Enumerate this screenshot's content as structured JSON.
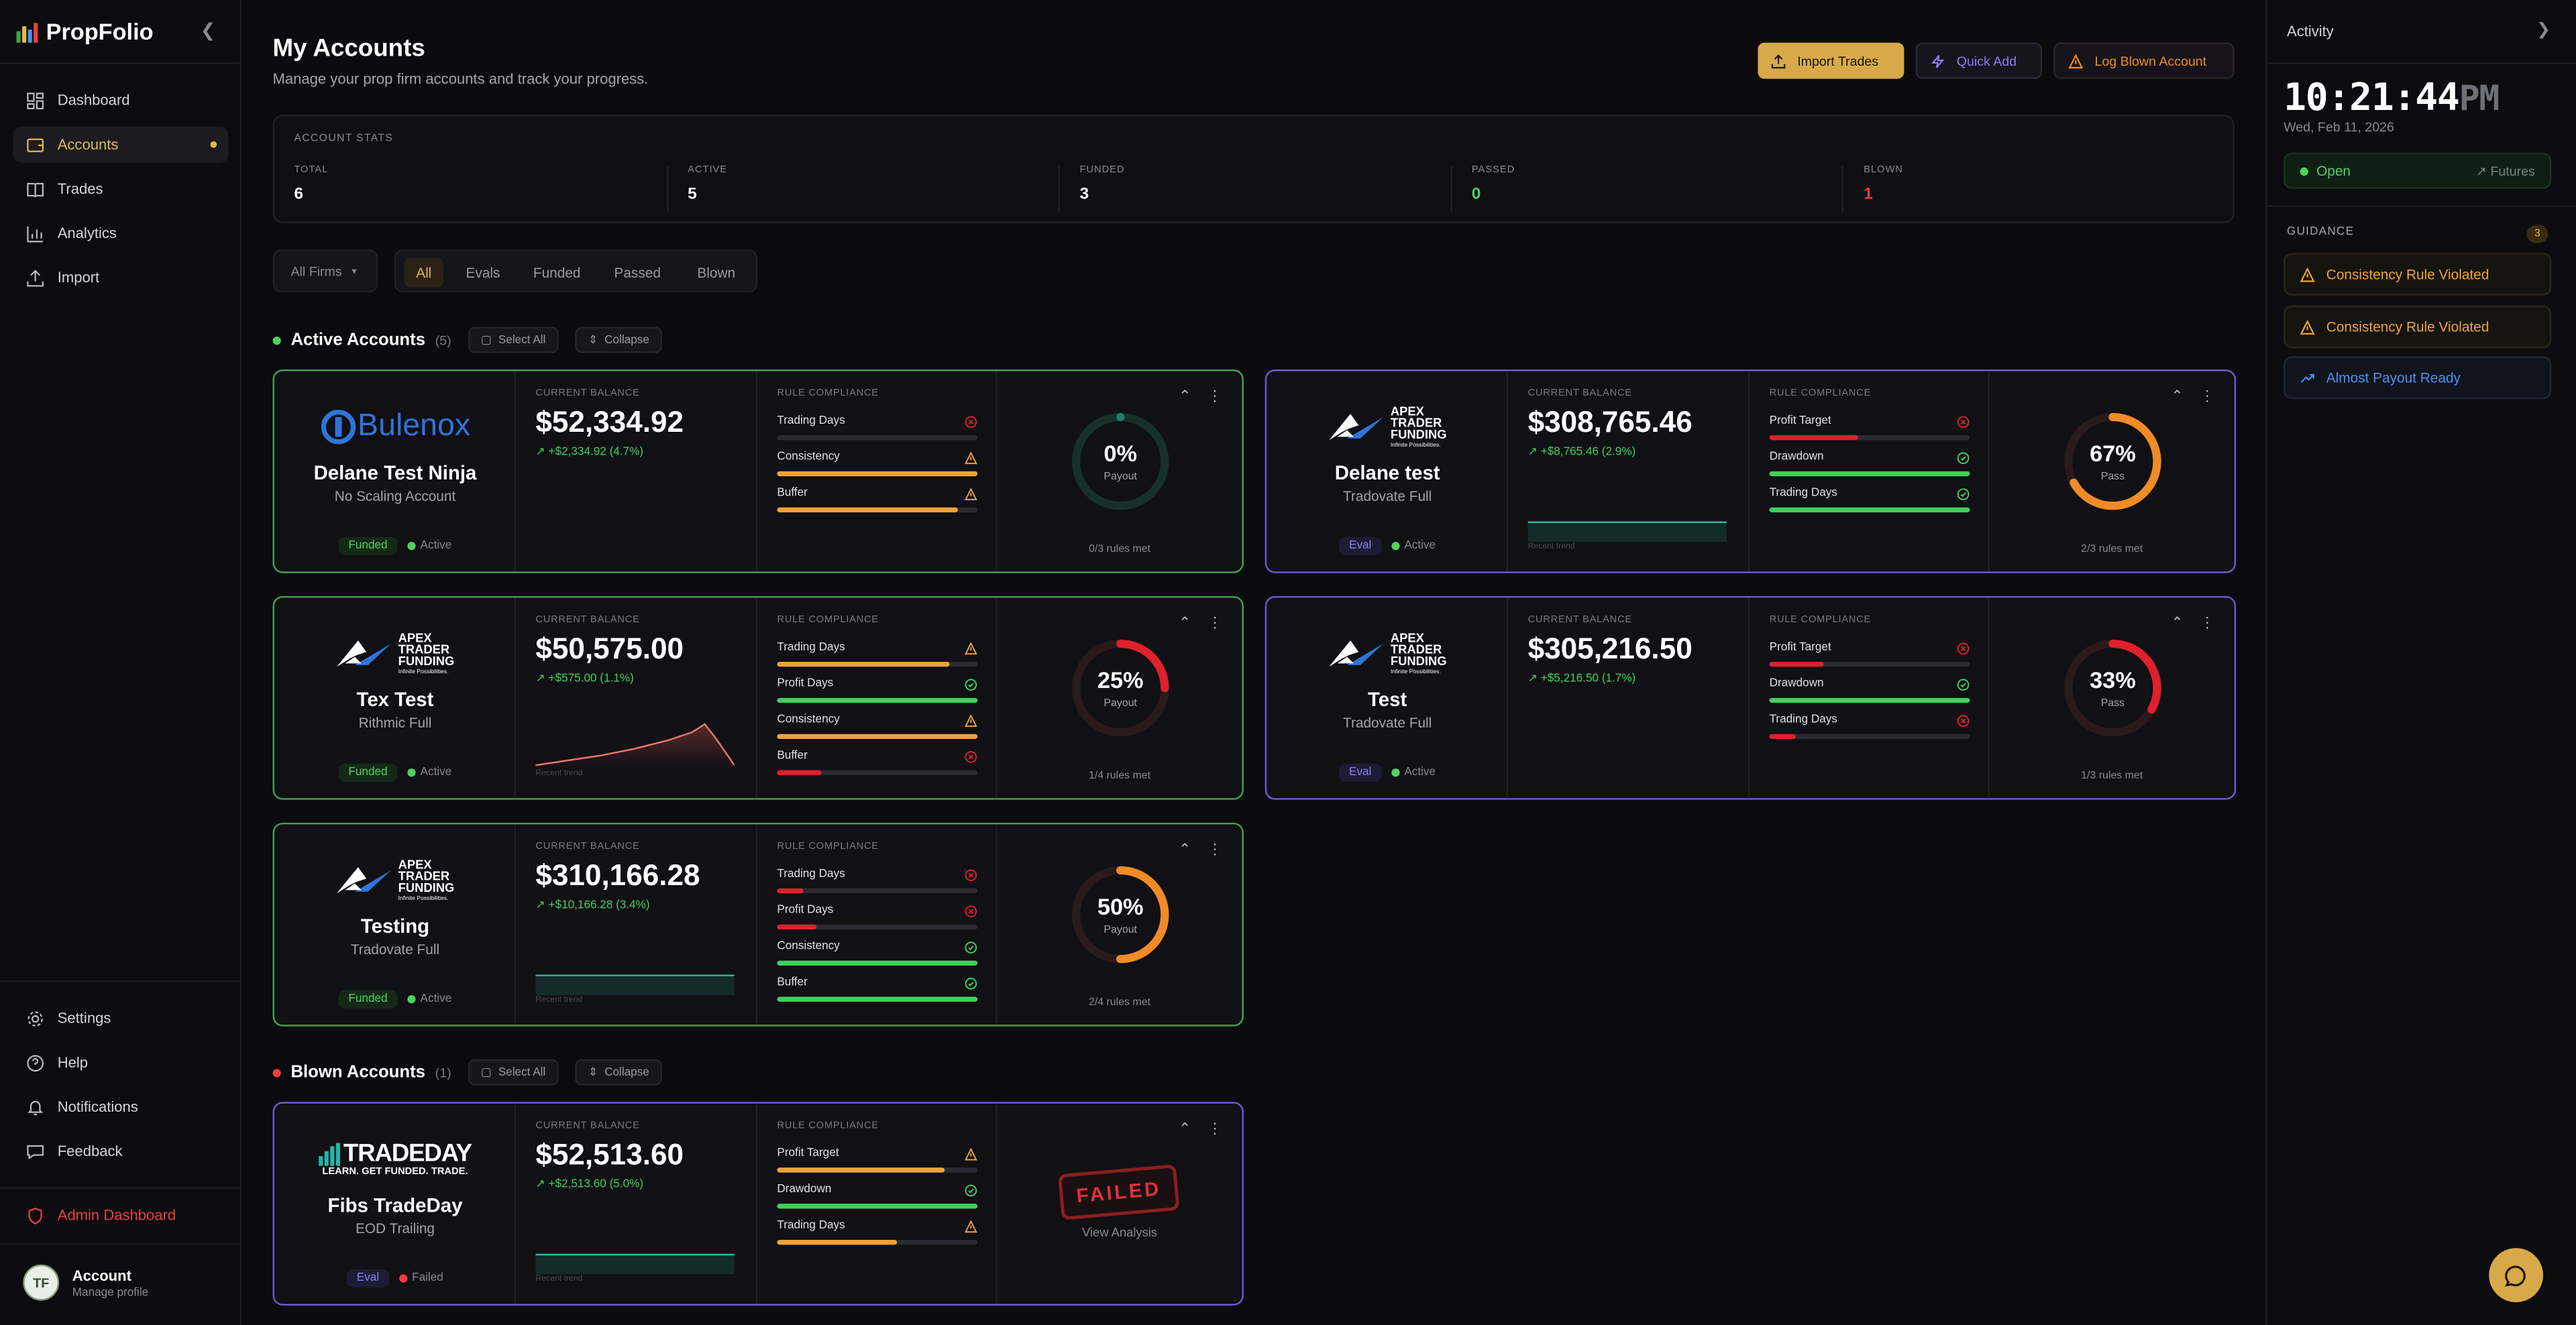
{
  "brand": {
    "name": "PropFolio"
  },
  "sidebar": {
    "items": [
      {
        "label": "Dashboard",
        "icon": "dashboard-icon"
      },
      {
        "label": "Accounts",
        "icon": "wallet-icon"
      },
      {
        "label": "Trades",
        "icon": "book-icon"
      },
      {
        "label": "Analytics",
        "icon": "bar-chart-icon"
      },
      {
        "label": "Import",
        "icon": "upload-icon"
      }
    ],
    "bottom_items": [
      {
        "label": "Settings",
        "icon": "gear-icon"
      },
      {
        "label": "Help",
        "icon": "help-icon"
      },
      {
        "label": "Notifications",
        "icon": "bell-icon"
      },
      {
        "label": "Feedback",
        "icon": "feedback-icon"
      }
    ],
    "admin_label": "Admin Dashboard",
    "account_name": "Account",
    "account_sub": "Manage profile",
    "avatar_letter": "TF"
  },
  "header": {
    "title": "My Accounts",
    "subtitle": "Manage your prop firm accounts and track your progress.",
    "import_label": "Import Trades",
    "quick_label": "Quick Add",
    "blown_label": "Log Blown Account"
  },
  "stats": {
    "title": "ACCOUNT STATS",
    "items": [
      {
        "label": "TOTAL",
        "value": "6",
        "color": "#ffffff"
      },
      {
        "label": "ACTIVE",
        "value": "5",
        "color": "#ffffff"
      },
      {
        "label": "FUNDED",
        "value": "3",
        "color": "#ffffff"
      },
      {
        "label": "PASSED",
        "value": "0",
        "color": "#4fd15e"
      },
      {
        "label": "BLOWN",
        "value": "1",
        "color": "#f03e3e"
      }
    ]
  },
  "filters": {
    "firms_label": "All Firms",
    "tabs": [
      "All",
      "Evals",
      "Funded",
      "Passed",
      "Blown"
    ]
  },
  "sections": {
    "active": {
      "title": "Active Accounts",
      "count": "(5)",
      "select_all": "Select All",
      "collapse": "Collapse"
    },
    "blown": {
      "title": "Blown Accounts",
      "count": "(1)",
      "select_all": "Select All",
      "collapse": "Collapse"
    }
  },
  "labels": {
    "current_balance": "CURRENT BALANCE",
    "rule_compliance": "RULE COMPLIANCE",
    "recent_trend": "Recent trend",
    "view_analysis": "View Analysis",
    "failed_stamp": "FAILED"
  },
  "accounts": [
    {
      "name": "Delane Test Ninja",
      "sub": "No Scaling Account",
      "firm_logo": "Bulenox",
      "type": "Funded",
      "status": "Active",
      "balance": "$52,334.92",
      "change": "+$2,334.92 (4.7%)",
      "trend": false,
      "rules": [
        {
          "name": "Trading Days",
          "fill": 0,
          "state": "fail"
        },
        {
          "name": "Consistency",
          "fill": 1.0,
          "state": "warn"
        },
        {
          "name": "Buffer",
          "fill": 0.9,
          "state": "warn"
        }
      ],
      "ring_pct": "0%",
      "ring_label": "Payout",
      "ring_value": 0,
      "rules_met": "0/3 rules met",
      "ring_color": "#1b7f6f"
    },
    {
      "name": "Delane test",
      "sub": "Tradovate Full",
      "firm_logo": "apex",
      "type": "Eval",
      "status": "Active",
      "balance": "$308,765.46",
      "change": "+$8,765.46 (2.9%)",
      "trend": "flat",
      "rules": [
        {
          "name": "Profit Target",
          "fill": 0.44,
          "state": "fail"
        },
        {
          "name": "Drawdown",
          "fill": 1.0,
          "state": "ok"
        },
        {
          "name": "Trading Days",
          "fill": 1.0,
          "state": "ok"
        }
      ],
      "ring_pct": "67%",
      "ring_label": "Pass",
      "ring_value": 0.67,
      "rules_met": "2/3 rules met",
      "ring_color": "#f08b26"
    },
    {
      "name": "Tex Test",
      "sub": "Rithmic Full",
      "firm_logo": "apex",
      "type": "Funded",
      "status": "Active",
      "balance": "$50,575.00",
      "change": "+$575.00 (1.1%)",
      "trend": "up",
      "rules": [
        {
          "name": "Trading Days",
          "fill": 0.86,
          "state": "warn"
        },
        {
          "name": "Profit Days",
          "fill": 1.0,
          "state": "ok"
        },
        {
          "name": "Consistency",
          "fill": 1.0,
          "state": "warn"
        },
        {
          "name": "Buffer",
          "fill": 0.22,
          "state": "fail"
        }
      ],
      "ring_pct": "25%",
      "ring_label": "Payout",
      "ring_value": 0.25,
      "rules_met": "1/4 rules met",
      "ring_color": "#e0202c"
    },
    {
      "name": "Test",
      "sub": "Tradovate Full",
      "firm_logo": "apex",
      "type": "Eval",
      "status": "Active",
      "balance": "$305,216.50",
      "change": "+$5,216.50 (1.7%)",
      "trend": false,
      "rules": [
        {
          "name": "Profit Target",
          "fill": 0.27,
          "state": "fail"
        },
        {
          "name": "Drawdown",
          "fill": 1.0,
          "state": "ok"
        },
        {
          "name": "Trading Days",
          "fill": 0.13,
          "state": "fail"
        }
      ],
      "ring_pct": "33%",
      "ring_label": "Pass",
      "ring_value": 0.33,
      "rules_met": "1/3 rules met",
      "ring_color": "#e0202c"
    },
    {
      "name": "Testing",
      "sub": "Tradovate Full",
      "firm_logo": "apex",
      "type": "Funded",
      "status": "Active",
      "balance": "$310,166.28",
      "change": "+$10,166.28 (3.4%)",
      "trend": "flat",
      "rules": [
        {
          "name": "Trading Days",
          "fill": 0.13,
          "state": "fail"
        },
        {
          "name": "Profit Days",
          "fill": 0.2,
          "state": "fail"
        },
        {
          "name": "Consistency",
          "fill": 1.0,
          "state": "ok"
        },
        {
          "name": "Buffer",
          "fill": 1.0,
          "state": "ok"
        }
      ],
      "ring_pct": "50%",
      "ring_label": "Payout",
      "ring_value": 0.5,
      "rules_met": "2/4 rules met",
      "ring_color": "#f08b26"
    },
    {
      "name": "Fibs TradeDay",
      "sub": "EOD Trailing",
      "firm_logo": "tradeday",
      "type": "Eval",
      "status": "Failed",
      "balance": "$52,513.60",
      "change": "+$2,513.60 (5.0%)",
      "trend": "flat",
      "rules": [
        {
          "name": "Profit Target",
          "fill": 0.84,
          "state": "warn"
        },
        {
          "name": "Drawdown",
          "fill": 1.0,
          "state": "ok"
        },
        {
          "name": "Trading Days",
          "fill": 0.6,
          "state": "warn"
        }
      ]
    }
  ],
  "logos": {
    "bulenox": "Bulenox",
    "apex_line1": "APEX",
    "apex_line2": "TRADER",
    "apex_line3": "FUNDING",
    "apex_tag": "Infinite Possibilities.",
    "tradeday_main": "TRADEDAY",
    "tradeday_tag": "LEARN. GET FUNDED. TRADE."
  },
  "activity": {
    "title": "Activity",
    "time": "10:21:44",
    "ampm": "PM",
    "date": "Wed, Feb 11, 2026",
    "market_status": "Open",
    "market_type": "Futures",
    "guidance_title": "GUIDANCE",
    "guidance_count": "3",
    "guidance": [
      {
        "label": "Consistency Rule Violated",
        "kind": "warn"
      },
      {
        "label": "Consistency Rule Violated",
        "kind": "warn"
      },
      {
        "label": "Almost Payout Ready",
        "kind": "ok"
      }
    ]
  },
  "colors": {
    "accent": "#e7b84a",
    "green": "#4fd15e",
    "red": "#f03e3e",
    "orange": "#f08b26",
    "purple": "#8e7cf4"
  }
}
